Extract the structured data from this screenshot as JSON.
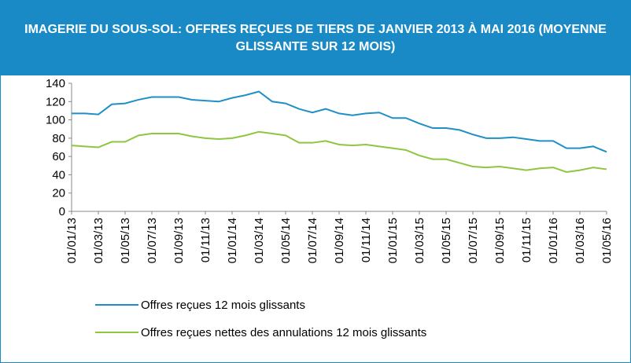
{
  "chart_data": {
    "type": "line",
    "title": "IMAGERIE DU SOUS-SOL: OFFRES REÇUES DE TIERS DE JANVIER 2013 À MAI 2016 (MOYENNE GLISSANTE SUR 12 MOIS)",
    "categories": [
      "01/01/13",
      null,
      "01/03/13",
      null,
      "01/05/13",
      null,
      "01/07/13",
      null,
      "01/09/13",
      null,
      "01/11/13",
      null,
      "01/01/14",
      null,
      "01/03/14",
      null,
      "01/05/14",
      null,
      "01/07/14",
      null,
      "01/09/14",
      null,
      "01/11/14",
      null,
      "01/01/15",
      null,
      "01/03/15",
      null,
      "01/05/15",
      null,
      "01/07/15",
      null,
      "01/09/15",
      null,
      "01/11/15",
      null,
      "01/01/16",
      null,
      "01/03/16",
      null,
      "01/05/16"
    ],
    "series": [
      {
        "name": "Offres reçues 12 mois glissants",
        "color": "#1f8fc6",
        "values": [
          107,
          107,
          106,
          117,
          118,
          122,
          125,
          125,
          125,
          122,
          121,
          120,
          124,
          127,
          131,
          120,
          118,
          112,
          108,
          112,
          107,
          105,
          107,
          108,
          102,
          102,
          96,
          91,
          91,
          89,
          84,
          80,
          80,
          81,
          79,
          77,
          77,
          69,
          69,
          71,
          65
        ]
      },
      {
        "name": "Offres reçues nettes des annulations 12 mois glissants",
        "color": "#8dc63f",
        "values": [
          72,
          71,
          70,
          76,
          76,
          83,
          85,
          85,
          85,
          82,
          80,
          79,
          80,
          83,
          87,
          85,
          83,
          75,
          75,
          77,
          73,
          72,
          73,
          71,
          69,
          67,
          61,
          57,
          57,
          53,
          49,
          48,
          49,
          47,
          45,
          47,
          48,
          43,
          45,
          48,
          46
        ]
      }
    ],
    "ylim": [
      0,
      140
    ],
    "yticks": [
      0,
      20,
      40,
      60,
      80,
      100,
      120,
      140
    ]
  }
}
